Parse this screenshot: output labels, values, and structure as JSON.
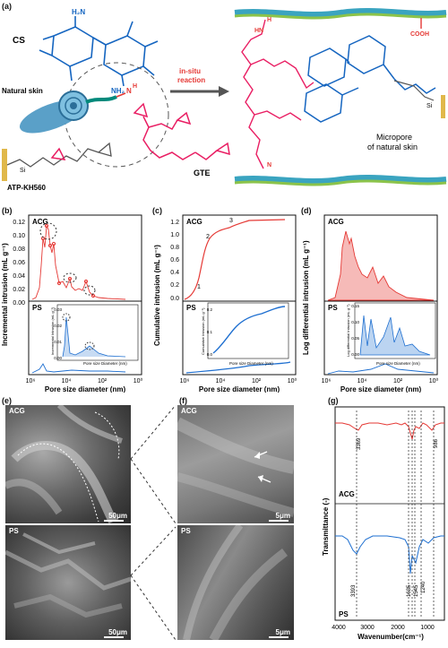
{
  "panels": {
    "a": {
      "label": "(a)",
      "cs": "CS",
      "nh2_top": "H₂N",
      "nh2_mid": "NH₂",
      "natural_skin": "Natural skin",
      "nh": "N",
      "h": "H",
      "in_situ_1": "in-situ",
      "in_situ_2": "reaction",
      "gte": "GTE",
      "atp": "ATP-KH560",
      "si": "Si",
      "cooh": "COOH",
      "micropore_1": "Micropore",
      "micropore_2": "of natural skin",
      "hn": "HN",
      "h_right": "H",
      "n_right": "N"
    },
    "b": {
      "label": "(b)",
      "ylabel": "Incremental intrusion (mL g⁻¹)",
      "xlabel": "Pore size diameter (nm)",
      "top": "ACG",
      "bottom": "PS",
      "yticks": [
        "0.00",
        "0.02",
        "0.04",
        "0.06",
        "0.08",
        "0.10",
        "0.12"
      ],
      "xticks": [
        "10⁶",
        "10⁴",
        "10²",
        "10⁰"
      ],
      "inset_ylabel": "Incremental Intrusion (mL g⁻¹)",
      "inset_xlabel": "Pore size Diameter (nm)",
      "inset_yticks": [
        "0.00",
        "0.01",
        "0.02",
        "0.03"
      ],
      "inset_xticks": [
        "10⁶",
        "10⁴",
        "10²",
        "10⁰"
      ]
    },
    "c": {
      "label": "(c)",
      "ylabel": "Cumulative intrusion (mL g⁻¹)",
      "xlabel": "Pore size diameter (nm)",
      "top": "ACG",
      "bottom": "PS",
      "yticks": [
        "0.0",
        "0.2",
        "0.4",
        "0.6",
        "0.8",
        "1.0",
        "1.2"
      ],
      "xticks": [
        "10⁶",
        "10⁴",
        "10²",
        "10⁰"
      ],
      "marks": [
        "1",
        "2",
        "3"
      ],
      "inset_ylabel": "Cumulative Intrusion (mL g⁻¹)",
      "inset_xlabel": "Pore size Diameter (nm)",
      "inset_yticks": [
        "0.0",
        "0.1",
        "0.2"
      ],
      "inset_xticks": [
        "10⁶",
        "10⁴",
        "10²",
        "10⁰"
      ]
    },
    "d": {
      "label": "(d)",
      "ylabel": "Log differential intrusion (mL g⁻¹)",
      "xlabel": "Pore size diameter (nm)",
      "top": "ACG",
      "bottom": "PS",
      "xticks": [
        "10⁶",
        "10⁴",
        "10²",
        "10⁰"
      ],
      "inset_ylabel": "Log differential Intrusion (mL g⁻¹)",
      "inset_xlabel": "Pore size Diameter (nm)",
      "inset_yticks": [
        "0.00",
        "0.05",
        "0.10",
        "0.15"
      ],
      "inset_xticks": [
        "10⁶",
        "10⁴",
        "10²",
        "10⁰"
      ]
    },
    "e": {
      "label": "(e)",
      "top": "ACG",
      "bottom": "PS",
      "scale_top": "50μm",
      "scale_bottom": "50μm"
    },
    "f": {
      "label": "(f)",
      "top": "ACG",
      "bottom": "PS",
      "scale_top": "5μm",
      "scale_bottom": "5μm"
    },
    "g": {
      "label": "(g)",
      "ylabel": "Transmittance (-)",
      "xlabel": "Wavenumber(cm⁻¹)",
      "top": "ACG",
      "bottom": "PS",
      "xticks": [
        "4000",
        "3000",
        "2000",
        "1000"
      ],
      "peaks_top": [
        "3369",
        "986"
      ],
      "peaks_bottom": [
        "3393",
        "1635",
        "1545",
        "1240"
      ]
    }
  },
  "colors": {
    "acg": "#e53935",
    "ps": "#1e6fd0",
    "cs": "#1565c0",
    "gte": "#e91e63"
  }
}
